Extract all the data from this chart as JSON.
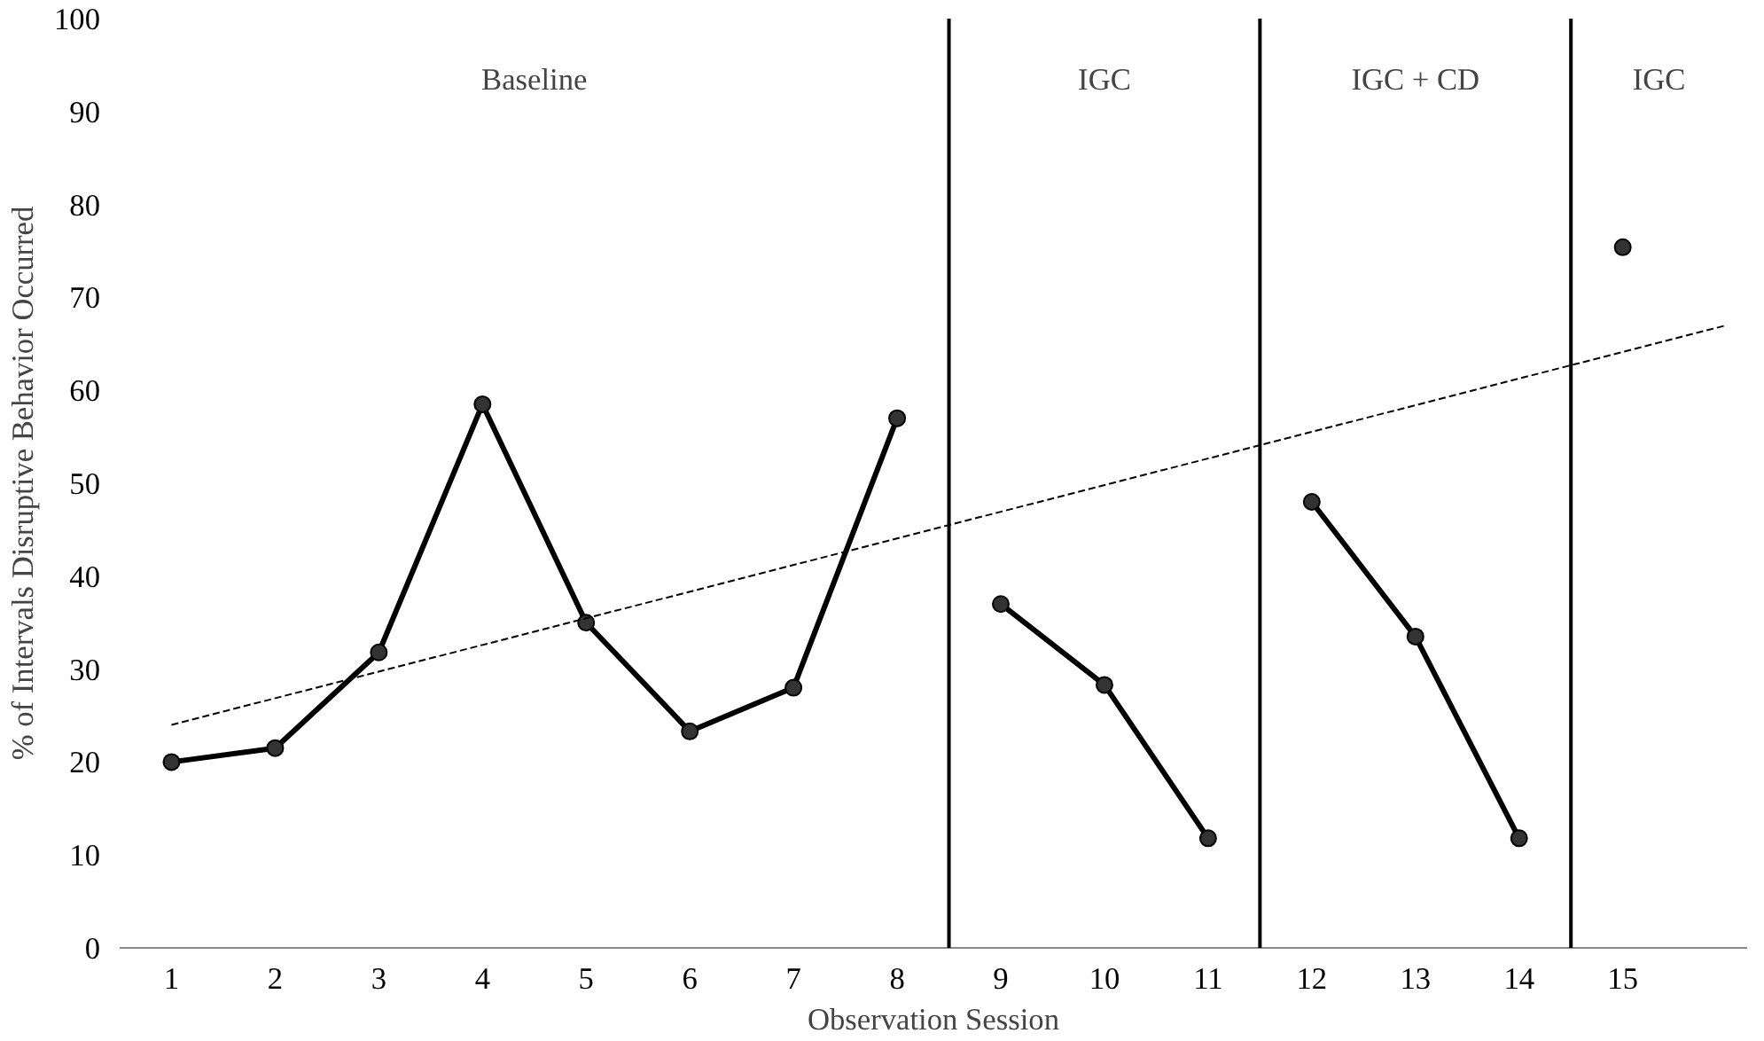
{
  "chart_data": {
    "type": "line",
    "xlabel": "Observation Session",
    "ylabel": "% of Intervals Disruptive Behavior Occurred",
    "xlim": [
      0.5,
      16.2
    ],
    "xticks": [
      1,
      2,
      3,
      4,
      5,
      6,
      7,
      8,
      9,
      10,
      11,
      12,
      13,
      14,
      15
    ],
    "ylim": [
      0,
      100
    ],
    "yticks": [
      0,
      10,
      20,
      30,
      40,
      50,
      60,
      70,
      80,
      90,
      100
    ],
    "grid": false,
    "marker": "circle",
    "series": [
      {
        "color": "#000000",
        "x": [
          1,
          2,
          3,
          4,
          5,
          6,
          7,
          8
        ],
        "values": [
          20,
          21.5,
          31.8,
          58.5,
          35,
          23.3,
          28,
          57
        ]
      },
      {
        "color": "#000000",
        "x": [
          9,
          10,
          11
        ],
        "values": [
          37,
          28.3,
          11.8
        ]
      },
      {
        "color": "#000000",
        "x": [
          12,
          13,
          14
        ],
        "values": [
          48,
          33.5,
          11.8
        ]
      },
      {
        "color": "#000000",
        "x": [
          15
        ],
        "values": [
          75.4
        ]
      },
      {
        "type": "line",
        "color": "#000000",
        "line_style": "dashed",
        "marker": "none",
        "x": [
          1,
          16
        ],
        "values": [
          24,
          67
        ]
      }
    ],
    "ref_lines": [
      {
        "axis": "x",
        "value": 8.5,
        "color": "#000000"
      },
      {
        "axis": "x",
        "value": 11.5,
        "color": "#000000"
      },
      {
        "axis": "x",
        "value": 14.5,
        "color": "#000000"
      }
    ],
    "annotations": [
      "Baseline",
      "IGC",
      "IGC + CD",
      "IGC"
    ]
  }
}
